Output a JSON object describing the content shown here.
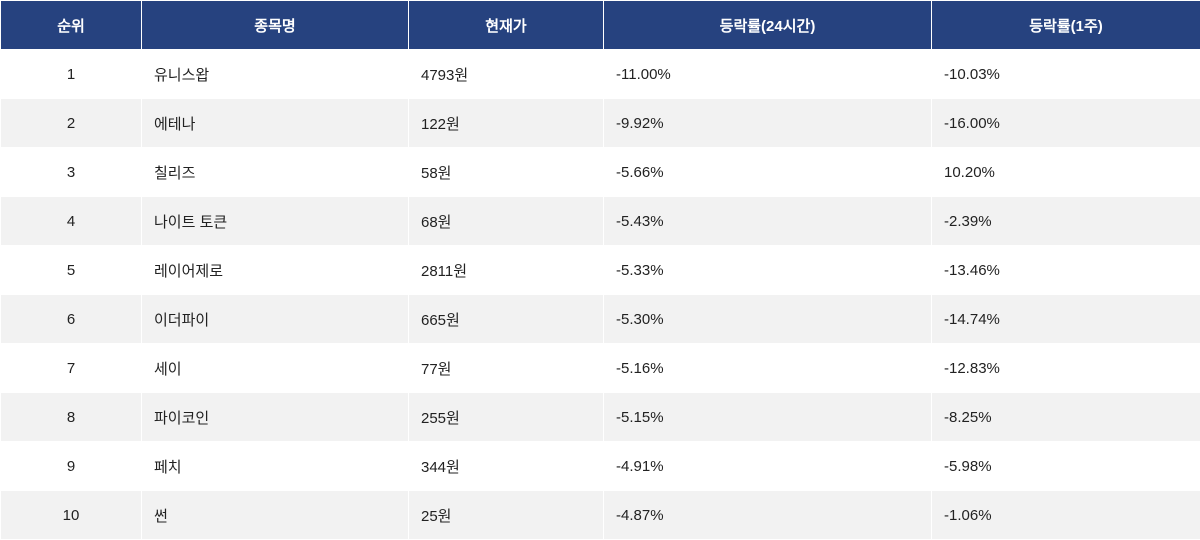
{
  "table": {
    "headers": [
      "순위",
      "종목명",
      "현재가",
      "등락률(24시간)",
      "등락률(1주)"
    ],
    "rows": [
      [
        "1",
        "유니스왑",
        "4793원",
        "-11.00%",
        "-10.03%"
      ],
      [
        "2",
        "에테나",
        "122원",
        "-9.92%",
        "-16.00%"
      ],
      [
        "3",
        "칠리즈",
        "58원",
        "-5.66%",
        "10.20%"
      ],
      [
        "4",
        "나이트 토큰",
        "68원",
        "-5.43%",
        "-2.39%"
      ],
      [
        "5",
        "레이어제로",
        "2811원",
        "-5.33%",
        "-13.46%"
      ],
      [
        "6",
        "이더파이",
        "665원",
        "-5.30%",
        "-14.74%"
      ],
      [
        "7",
        "세이",
        "77원",
        "-5.16%",
        "-12.83%"
      ],
      [
        "8",
        "파이코인",
        "255원",
        "-5.15%",
        "-8.25%"
      ],
      [
        "9",
        "페치",
        "344원",
        "-4.91%",
        "-5.98%"
      ],
      [
        "10",
        "썬",
        "25원",
        "-4.87%",
        "-1.06%"
      ]
    ]
  }
}
